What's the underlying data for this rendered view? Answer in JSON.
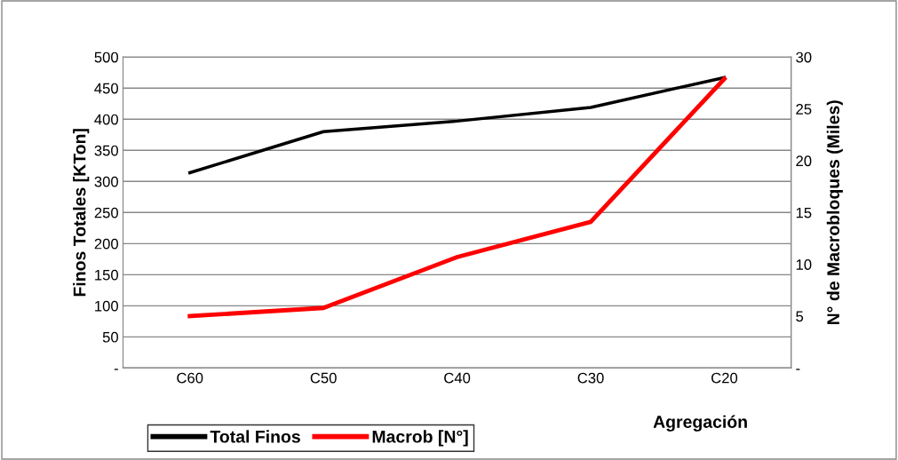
{
  "chart_data": {
    "type": "line",
    "categories": [
      "C60",
      "C50",
      "C40",
      "C30",
      "C20"
    ],
    "xlabel": "Agregación",
    "ylabel": "Finos Totales [KTon]",
    "y2label": "N° de Macrobloques (Miles)",
    "series": [
      {
        "name": "Total Finos",
        "color": "#000000",
        "values": [
          314,
          380,
          397,
          419,
          467
        ]
      },
      {
        "name": "Macrob [N°]",
        "color": "#ff0000",
        "values": [
          5.0,
          5.8,
          10.7,
          14.1,
          27.9
        ],
        "axis": "y2"
      }
    ],
    "ylim": [
      0,
      500
    ],
    "yticks": [
      {
        "value": 0,
        "label": "-"
      },
      50,
      100,
      150,
      200,
      250,
      300,
      350,
      400,
      450,
      500
    ],
    "y2lim": [
      0,
      30
    ],
    "y2ticks": [
      {
        "value": 0,
        "label": "-"
      },
      5,
      10,
      15,
      20,
      25,
      30
    ],
    "grid": "y",
    "legend": "bottom left",
    "marker": "none",
    "line_style": "solid"
  }
}
